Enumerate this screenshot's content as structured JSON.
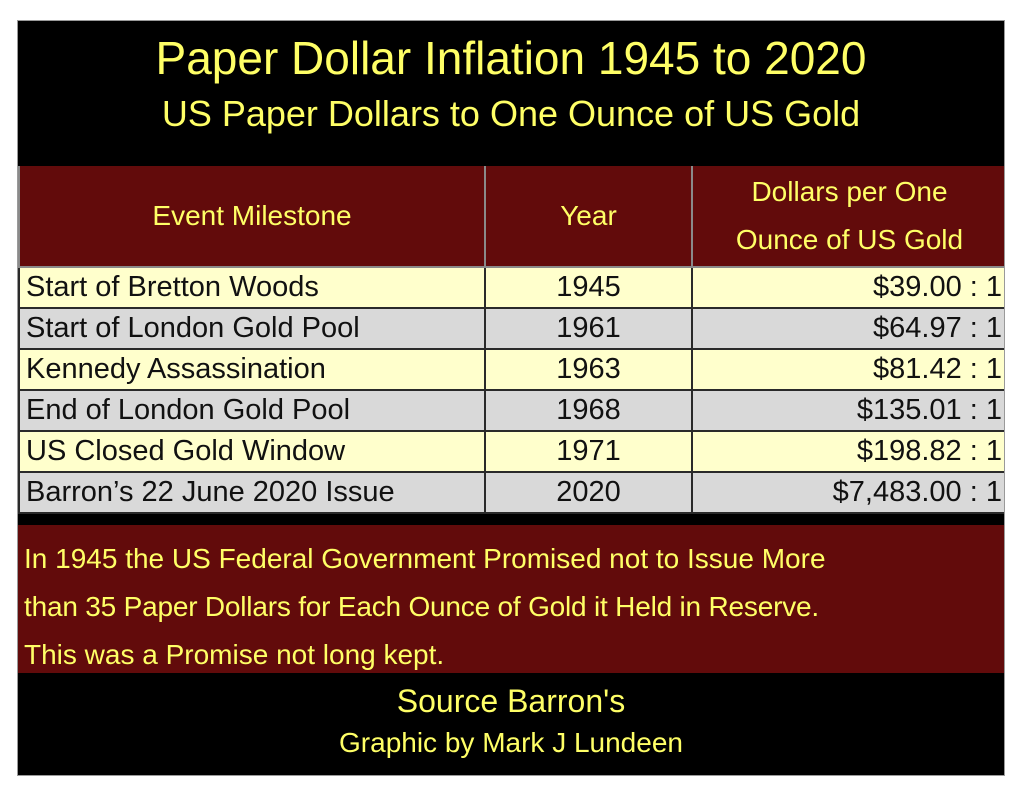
{
  "title": "Paper Dollar Inflation 1945 to 2020",
  "subtitle": "US Paper Dollars to One Ounce of US Gold",
  "colors": {
    "background": "#000000",
    "header_fill": "#620b0b",
    "text_accent": "#ffff66",
    "row_light": "#ffffcc",
    "row_gray": "#d9d9d9"
  },
  "chart_data": {
    "type": "table",
    "title": "Paper Dollar Inflation 1945 to 2020",
    "subtitle": "US Paper Dollars to One Ounce of US Gold",
    "columns": [
      {
        "label": "Event Milestone"
      },
      {
        "label": "Year"
      },
      {
        "label_line1": "Dollars per One",
        "label_line2": "Ounce of US Gold"
      }
    ],
    "rows": [
      {
        "event": "Start of Bretton Woods",
        "year": "1945",
        "ratio": "$39.00 : 1"
      },
      {
        "event": "Start of London Gold Pool",
        "year": "1961",
        "ratio": "$64.97 : 1"
      },
      {
        "event": "Kennedy Assassination",
        "year": "1963",
        "ratio": "$81.42 : 1"
      },
      {
        "event": "End of London Gold Pool",
        "year": "1968",
        "ratio": "$135.01 : 1"
      },
      {
        "event": "US Closed Gold Window",
        "year": "1971",
        "ratio": "$198.82 : 1"
      },
      {
        "event": "Barron’s 22 June 2020 Issue",
        "year": "2020",
        "ratio": "$7,483.00 : 1"
      }
    ]
  },
  "note": {
    "line1": "In 1945 the US Federal Government Promised not to Issue More",
    "line2": "than 35 Paper Dollars for Each Ounce of Gold it Held in Reserve.",
    "line3": "This was a Promise not long kept."
  },
  "footer": {
    "source": "Source Barron's",
    "credit": "Graphic by Mark J Lundeen"
  }
}
